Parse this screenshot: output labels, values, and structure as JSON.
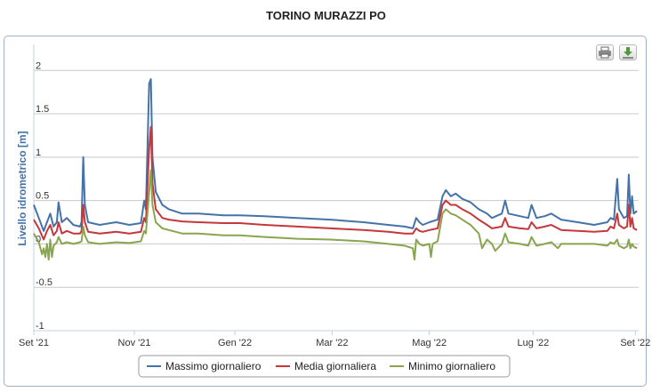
{
  "title": "TORINO MURAZZI PO",
  "toolbar": {
    "print_icon": "printer-icon",
    "download_icon": "download-icon"
  },
  "chart_data": {
    "type": "line",
    "title": "TORINO MURAZZI PO",
    "ylabel": "Livello idrometrico [m]",
    "xlabel": "",
    "ylim": [
      -1,
      2.3
    ],
    "yticks": [
      -1,
      -0.5,
      0,
      0.5,
      1,
      1.5,
      2
    ],
    "yticklabels": [
      "-1",
      "-0.5",
      "0",
      "0.5",
      "1",
      "1.5",
      "2"
    ],
    "xrange": [
      0,
      367
    ],
    "xticks": [
      0,
      61,
      122,
      181,
      240,
      303,
      365
    ],
    "xticklabels": [
      "Set '21",
      "Nov '21",
      "Gen '22",
      "Mar '22",
      "Mag '22",
      "Lug '22",
      "Set '22"
    ],
    "grid": true,
    "legend_position": "bottom",
    "series": [
      {
        "name": "Massimo giornaliero",
        "color": "#4572a7",
        "points": [
          [
            0,
            0.45
          ],
          [
            3,
            0.3
          ],
          [
            6,
            0.15
          ],
          [
            8,
            0.25
          ],
          [
            10,
            0.35
          ],
          [
            12,
            0.2
          ],
          [
            14,
            0.25
          ],
          [
            15,
            0.48
          ],
          [
            17,
            0.25
          ],
          [
            20,
            0.3
          ],
          [
            24,
            0.22
          ],
          [
            28,
            0.2
          ],
          [
            29,
            0.25
          ],
          [
            30,
            1.0
          ],
          [
            31,
            0.45
          ],
          [
            33,
            0.25
          ],
          [
            40,
            0.22
          ],
          [
            50,
            0.25
          ],
          [
            58,
            0.22
          ],
          [
            65,
            0.24
          ],
          [
            67,
            0.5
          ],
          [
            68,
            0.4
          ],
          [
            70,
            1.85
          ],
          [
            71,
            1.9
          ],
          [
            72,
            1.0
          ],
          [
            74,
            0.6
          ],
          [
            78,
            0.45
          ],
          [
            82,
            0.4
          ],
          [
            90,
            0.35
          ],
          [
            100,
            0.35
          ],
          [
            115,
            0.33
          ],
          [
            125,
            0.33
          ],
          [
            140,
            0.32
          ],
          [
            160,
            0.3
          ],
          [
            180,
            0.28
          ],
          [
            200,
            0.25
          ],
          [
            215,
            0.22
          ],
          [
            225,
            0.2
          ],
          [
            230,
            0.18
          ],
          [
            232,
            0.3
          ],
          [
            234,
            0.25
          ],
          [
            236,
            0.22
          ],
          [
            240,
            0.25
          ],
          [
            245,
            0.28
          ],
          [
            248,
            0.55
          ],
          [
            250,
            0.62
          ],
          [
            253,
            0.55
          ],
          [
            256,
            0.58
          ],
          [
            260,
            0.52
          ],
          [
            265,
            0.48
          ],
          [
            270,
            0.4
          ],
          [
            275,
            0.35
          ],
          [
            278,
            0.3
          ],
          [
            284,
            0.35
          ],
          [
            286,
            0.5
          ],
          [
            288,
            0.35
          ],
          [
            295,
            0.32
          ],
          [
            300,
            0.3
          ],
          [
            302,
            0.45
          ],
          [
            305,
            0.3
          ],
          [
            310,
            0.32
          ],
          [
            314,
            0.35
          ],
          [
            320,
            0.28
          ],
          [
            330,
            0.25
          ],
          [
            340,
            0.22
          ],
          [
            348,
            0.25
          ],
          [
            350,
            0.3
          ],
          [
            352,
            0.28
          ],
          [
            354,
            0.75
          ],
          [
            355,
            0.4
          ],
          [
            358,
            0.3
          ],
          [
            360,
            0.32
          ],
          [
            361,
            0.8
          ],
          [
            362,
            0.35
          ],
          [
            363,
            0.55
          ],
          [
            364,
            0.35
          ],
          [
            366,
            0.38
          ]
        ]
      },
      {
        "name": "Media giornaliera",
        "color": "#c4373b",
        "points": [
          [
            0,
            0.28
          ],
          [
            3,
            0.18
          ],
          [
            6,
            0.05
          ],
          [
            8,
            0.15
          ],
          [
            10,
            0.22
          ],
          [
            12,
            0.1
          ],
          [
            14,
            0.15
          ],
          [
            15,
            0.25
          ],
          [
            17,
            0.12
          ],
          [
            20,
            0.15
          ],
          [
            24,
            0.12
          ],
          [
            28,
            0.12
          ],
          [
            29,
            0.15
          ],
          [
            30,
            0.45
          ],
          [
            31,
            0.25
          ],
          [
            33,
            0.14
          ],
          [
            40,
            0.12
          ],
          [
            50,
            0.14
          ],
          [
            58,
            0.12
          ],
          [
            65,
            0.14
          ],
          [
            67,
            0.3
          ],
          [
            68,
            0.25
          ],
          [
            70,
            1.1
          ],
          [
            71,
            1.35
          ],
          [
            72,
            0.7
          ],
          [
            74,
            0.4
          ],
          [
            78,
            0.3
          ],
          [
            82,
            0.28
          ],
          [
            90,
            0.26
          ],
          [
            100,
            0.25
          ],
          [
            115,
            0.24
          ],
          [
            125,
            0.24
          ],
          [
            140,
            0.22
          ],
          [
            160,
            0.2
          ],
          [
            180,
            0.18
          ],
          [
            200,
            0.16
          ],
          [
            215,
            0.14
          ],
          [
            225,
            0.12
          ],
          [
            230,
            0.12
          ],
          [
            232,
            0.18
          ],
          [
            234,
            0.15
          ],
          [
            236,
            0.14
          ],
          [
            240,
            0.16
          ],
          [
            245,
            0.18
          ],
          [
            248,
            0.45
          ],
          [
            250,
            0.5
          ],
          [
            253,
            0.45
          ],
          [
            256,
            0.45
          ],
          [
            260,
            0.4
          ],
          [
            265,
            0.35
          ],
          [
            270,
            0.28
          ],
          [
            275,
            0.22
          ],
          [
            278,
            0.18
          ],
          [
            284,
            0.2
          ],
          [
            286,
            0.3
          ],
          [
            288,
            0.2
          ],
          [
            295,
            0.18
          ],
          [
            300,
            0.17
          ],
          [
            302,
            0.25
          ],
          [
            305,
            0.18
          ],
          [
            310,
            0.2
          ],
          [
            314,
            0.22
          ],
          [
            320,
            0.16
          ],
          [
            330,
            0.15
          ],
          [
            340,
            0.14
          ],
          [
            348,
            0.15
          ],
          [
            350,
            0.2
          ],
          [
            352,
            0.18
          ],
          [
            354,
            0.35
          ],
          [
            355,
            0.22
          ],
          [
            358,
            0.18
          ],
          [
            360,
            0.2
          ],
          [
            361,
            0.45
          ],
          [
            362,
            0.2
          ],
          [
            363,
            0.3
          ],
          [
            364,
            0.18
          ],
          [
            366,
            0.16
          ]
        ]
      },
      {
        "name": "Minimo giornaliero",
        "color": "#89a54e",
        "points": [
          [
            0,
            0.12
          ],
          [
            3,
            0.02
          ],
          [
            5,
            -0.12
          ],
          [
            6,
            -0.05
          ],
          [
            7,
            -0.15
          ],
          [
            8,
            0.0
          ],
          [
            9,
            -0.18
          ],
          [
            10,
            0.05
          ],
          [
            11,
            -0.15
          ],
          [
            12,
            -0.02
          ],
          [
            14,
            0.02
          ],
          [
            15,
            0.08
          ],
          [
            17,
            0.0
          ],
          [
            20,
            0.02
          ],
          [
            24,
            0.0
          ],
          [
            28,
            0.02
          ],
          [
            29,
            0.03
          ],
          [
            30,
            0.2
          ],
          [
            31,
            0.1
          ],
          [
            33,
            0.02
          ],
          [
            40,
            0.0
          ],
          [
            50,
            0.02
          ],
          [
            58,
            0.01
          ],
          [
            65,
            0.03
          ],
          [
            67,
            0.15
          ],
          [
            68,
            0.12
          ],
          [
            70,
            0.6
          ],
          [
            71,
            0.85
          ],
          [
            72,
            0.45
          ],
          [
            74,
            0.25
          ],
          [
            78,
            0.18
          ],
          [
            82,
            0.16
          ],
          [
            90,
            0.12
          ],
          [
            100,
            0.12
          ],
          [
            115,
            0.1
          ],
          [
            125,
            0.1
          ],
          [
            140,
            0.08
          ],
          [
            160,
            0.06
          ],
          [
            180,
            0.05
          ],
          [
            200,
            0.03
          ],
          [
            215,
            0.0
          ],
          [
            225,
            -0.02
          ],
          [
            230,
            -0.05
          ],
          [
            231,
            -0.18
          ],
          [
            232,
            0.05
          ],
          [
            234,
            0.0
          ],
          [
            236,
            -0.02
          ],
          [
            240,
            0.0
          ],
          [
            241,
            -0.15
          ],
          [
            242,
            0.0
          ],
          [
            245,
            0.03
          ],
          [
            248,
            0.35
          ],
          [
            250,
            0.4
          ],
          [
            253,
            0.35
          ],
          [
            256,
            0.33
          ],
          [
            260,
            0.28
          ],
          [
            265,
            0.22
          ],
          [
            270,
            0.12
          ],
          [
            272,
            -0.05
          ],
          [
            275,
            0.05
          ],
          [
            278,
            0.0
          ],
          [
            280,
            -0.08
          ],
          [
            284,
            0.0
          ],
          [
            286,
            0.12
          ],
          [
            288,
            0.02
          ],
          [
            295,
            0.0
          ],
          [
            300,
            -0.02
          ],
          [
            302,
            0.08
          ],
          [
            305,
            -0.02
          ],
          [
            310,
            0.0
          ],
          [
            314,
            0.02
          ],
          [
            318,
            -0.05
          ],
          [
            320,
            0.0
          ],
          [
            330,
            0.0
          ],
          [
            340,
            0.0
          ],
          [
            348,
            -0.02
          ],
          [
            350,
            0.02
          ],
          [
            352,
            0.0
          ],
          [
            354,
            0.05
          ],
          [
            355,
            -0.02
          ],
          [
            358,
            -0.05
          ],
          [
            360,
            -0.03
          ],
          [
            361,
            0.05
          ],
          [
            362,
            -0.05
          ],
          [
            363,
            0.0
          ],
          [
            364,
            -0.03
          ],
          [
            366,
            -0.05
          ]
        ]
      }
    ]
  }
}
